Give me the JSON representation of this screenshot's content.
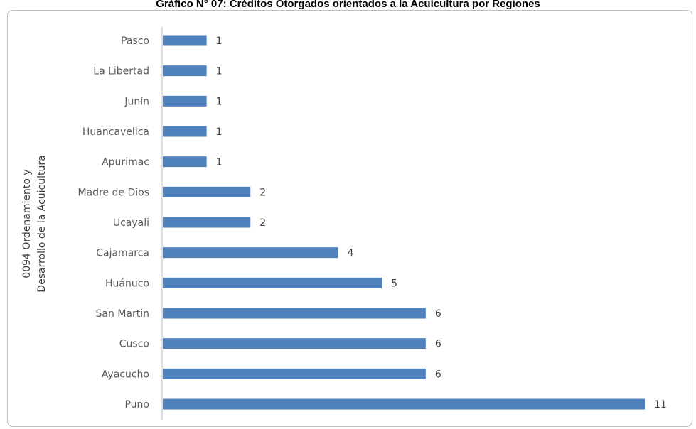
{
  "chart_data": {
    "type": "bar",
    "orientation": "horizontal",
    "title": "Gráfico N° 07: Créditos Otorgados orientados a la Acuicultura por Regiones",
    "ylabel_lines": [
      "0094 Ordenamiento y",
      "Desarrollo de la Acuicultura"
    ],
    "categories": [
      "Pasco",
      "La Libertad",
      "Junín",
      "Huancavelica",
      "Apurimac",
      "Madre de Dios",
      "Ucayali",
      "Cajamarca",
      "Huánuco",
      "San Martin",
      "Cusco",
      "Ayacucho",
      "Puno"
    ],
    "values": [
      1,
      1,
      1,
      1,
      1,
      2,
      2,
      4,
      5,
      6,
      6,
      6,
      11
    ],
    "xlim": [
      0,
      11
    ],
    "bar_color": "#4f81bd",
    "grid": false,
    "legend": "none"
  }
}
